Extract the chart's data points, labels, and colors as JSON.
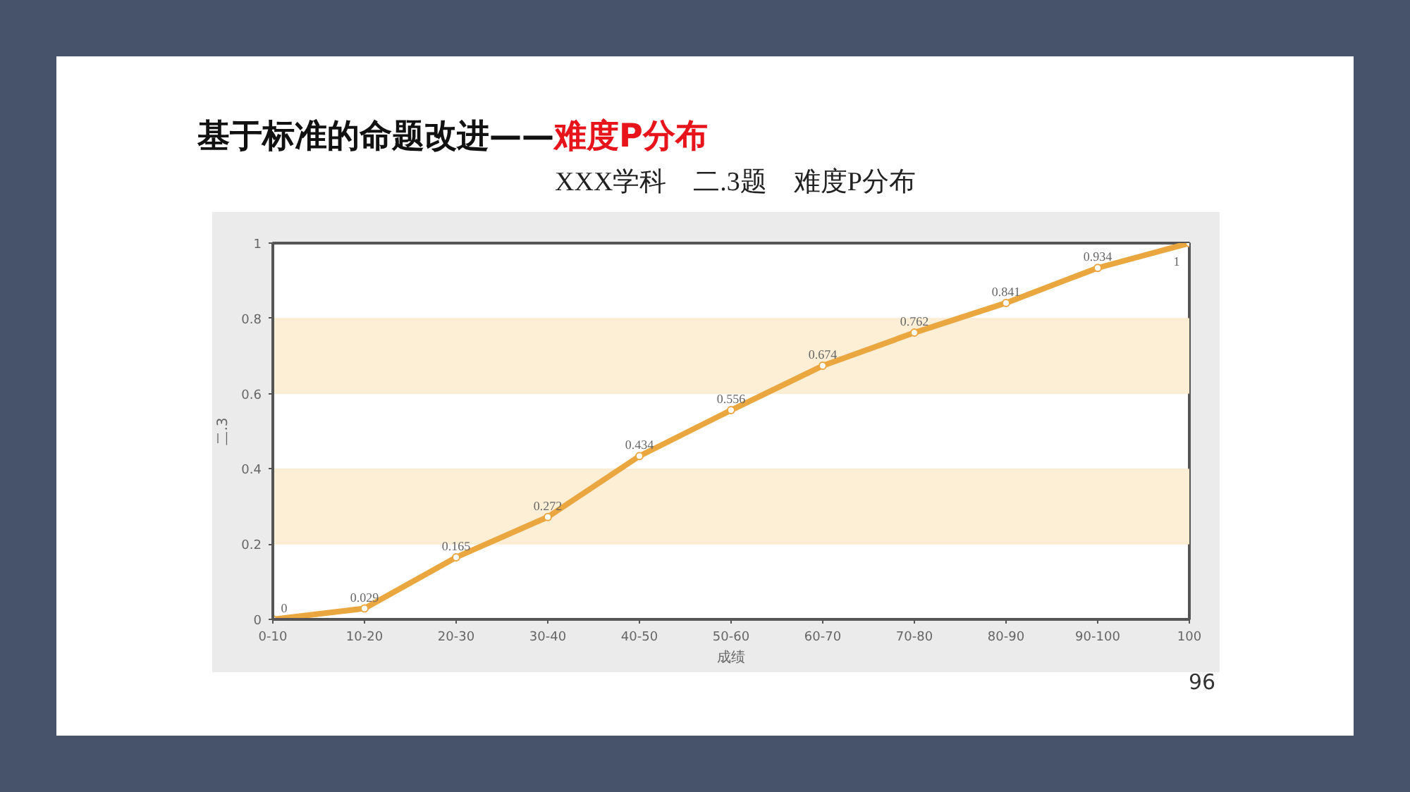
{
  "chart_data": {
    "type": "line",
    "title": "基于标准的命题改进——难度P分布",
    "subtitle": "XXX学科　二.3题　难度P分布",
    "xlabel": "成绩",
    "ylabel": "二.3",
    "annotations": [
      "96"
    ],
    "categories": [
      "0-10",
      "10-20",
      "20-30",
      "30-40",
      "40-50",
      "50-60",
      "60-70",
      "70-80",
      "80-90",
      "90-100",
      "100"
    ],
    "values": [
      0,
      0.029,
      0.165,
      0.272,
      0.434,
      0.556,
      0.674,
      0.762,
      0.841,
      0.934,
      1
    ],
    "color": "#eba73f",
    "ylim": [
      0,
      1
    ],
    "yticks": [
      0,
      0.2,
      0.4,
      0.6,
      0.8,
      1
    ],
    "bands": [
      {
        "axis": "y",
        "from": 0.2,
        "to": 0.4,
        "color": "#fdeed6"
      },
      {
        "axis": "y",
        "from": 0.6,
        "to": 0.8,
        "color": "#fdeed6"
      }
    ],
    "data_labels": true,
    "grid": false,
    "marker": "circle"
  }
}
